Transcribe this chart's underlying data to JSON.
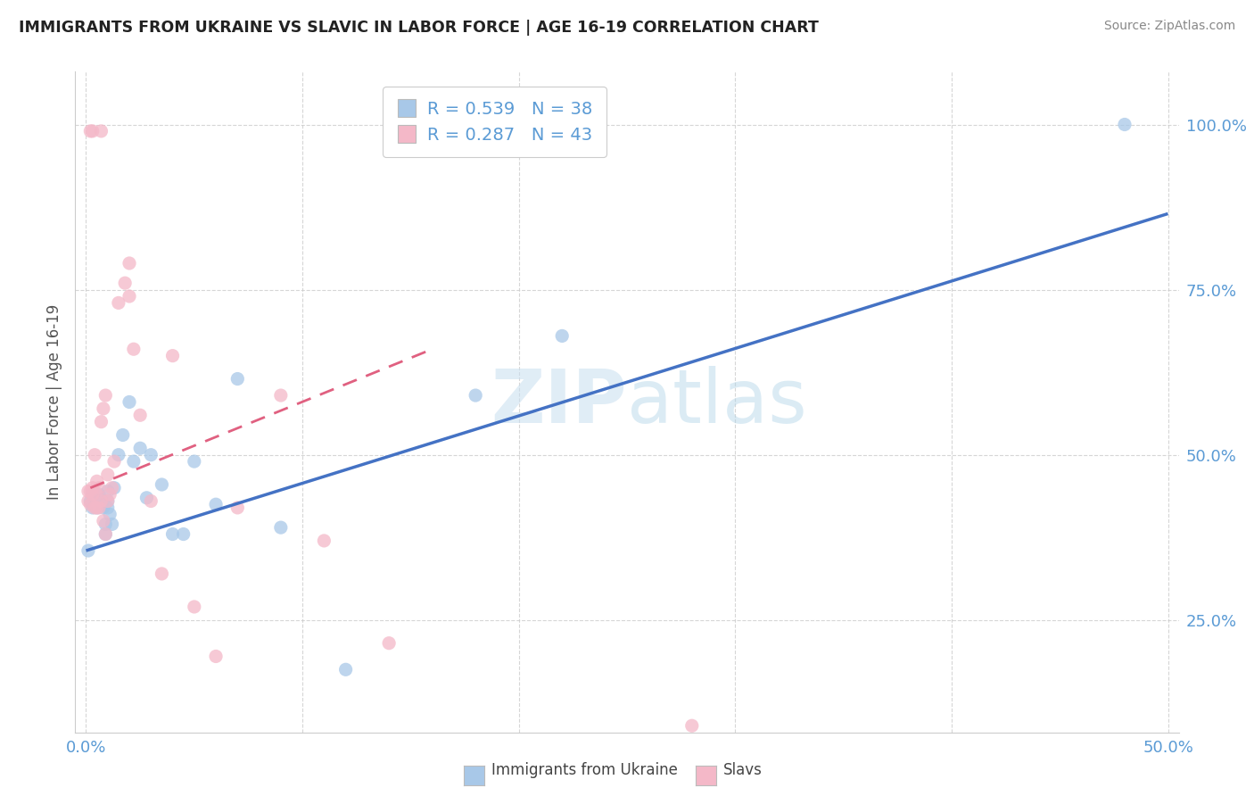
{
  "title": "IMMIGRANTS FROM UKRAINE VS SLAVIC IN LABOR FORCE | AGE 16-19 CORRELATION CHART",
  "source": "Source: ZipAtlas.com",
  "ylabel": "In Labor Force | Age 16-19",
  "legend_label_blue": "Immigrants from Ukraine",
  "legend_label_pink": "Slavs",
  "blue_color": "#a8c8e8",
  "pink_color": "#f4b8c8",
  "blue_line_color": "#4472c4",
  "pink_line_color": "#e06080",
  "title_color": "#222222",
  "axis_color": "#5b9bd5",
  "watermark_color": "#ddeeff",
  "blue_scatter_x": [
    0.001,
    0.002,
    0.003,
    0.003,
    0.004,
    0.005,
    0.005,
    0.006,
    0.007,
    0.007,
    0.008,
    0.008,
    0.009,
    0.009,
    0.01,
    0.01,
    0.01,
    0.011,
    0.012,
    0.013,
    0.015,
    0.017,
    0.02,
    0.022,
    0.025,
    0.028,
    0.03,
    0.035,
    0.04,
    0.045,
    0.05,
    0.06,
    0.07,
    0.09,
    0.12,
    0.18,
    0.22,
    0.48
  ],
  "blue_scatter_y": [
    0.355,
    0.43,
    0.42,
    0.44,
    0.43,
    0.42,
    0.43,
    0.44,
    0.43,
    0.425,
    0.42,
    0.43,
    0.38,
    0.395,
    0.42,
    0.43,
    0.445,
    0.41,
    0.395,
    0.45,
    0.5,
    0.53,
    0.58,
    0.49,
    0.51,
    0.435,
    0.5,
    0.455,
    0.38,
    0.38,
    0.49,
    0.425,
    0.615,
    0.39,
    0.175,
    0.59,
    0.68,
    1.0
  ],
  "pink_scatter_x": [
    0.001,
    0.001,
    0.002,
    0.002,
    0.003,
    0.003,
    0.004,
    0.004,
    0.005,
    0.005,
    0.005,
    0.006,
    0.006,
    0.007,
    0.007,
    0.008,
    0.008,
    0.009,
    0.009,
    0.01,
    0.01,
    0.011,
    0.012,
    0.013,
    0.015,
    0.018,
    0.02,
    0.022,
    0.025,
    0.03,
    0.035,
    0.04,
    0.05,
    0.06,
    0.07,
    0.09,
    0.11,
    0.14,
    0.28,
    0.002,
    0.003,
    0.007,
    0.02
  ],
  "pink_scatter_y": [
    0.43,
    0.445,
    0.425,
    0.445,
    0.44,
    0.45,
    0.42,
    0.5,
    0.42,
    0.44,
    0.46,
    0.42,
    0.45,
    0.43,
    0.55,
    0.4,
    0.57,
    0.38,
    0.59,
    0.43,
    0.47,
    0.44,
    0.45,
    0.49,
    0.73,
    0.76,
    0.79,
    0.66,
    0.56,
    0.43,
    0.32,
    0.65,
    0.27,
    0.195,
    0.42,
    0.59,
    0.37,
    0.215,
    0.09,
    0.99,
    0.99,
    0.99,
    0.74
  ],
  "xlim": [
    -0.005,
    0.505
  ],
  "ylim": [
    0.08,
    1.08
  ],
  "blue_trend_x0": 0.0,
  "blue_trend_y0": 0.355,
  "blue_trend_x1": 0.5,
  "blue_trend_y1": 0.865,
  "pink_trend_x0": 0.002,
  "pink_trend_y0": 0.45,
  "pink_trend_x1": 0.16,
  "pink_trend_y1": 0.66,
  "ytick_positions": [
    0.25,
    0.5,
    0.75,
    1.0
  ],
  "ytick_labels": [
    "25.0%",
    "50.0%",
    "75.0%",
    "100.0%"
  ]
}
